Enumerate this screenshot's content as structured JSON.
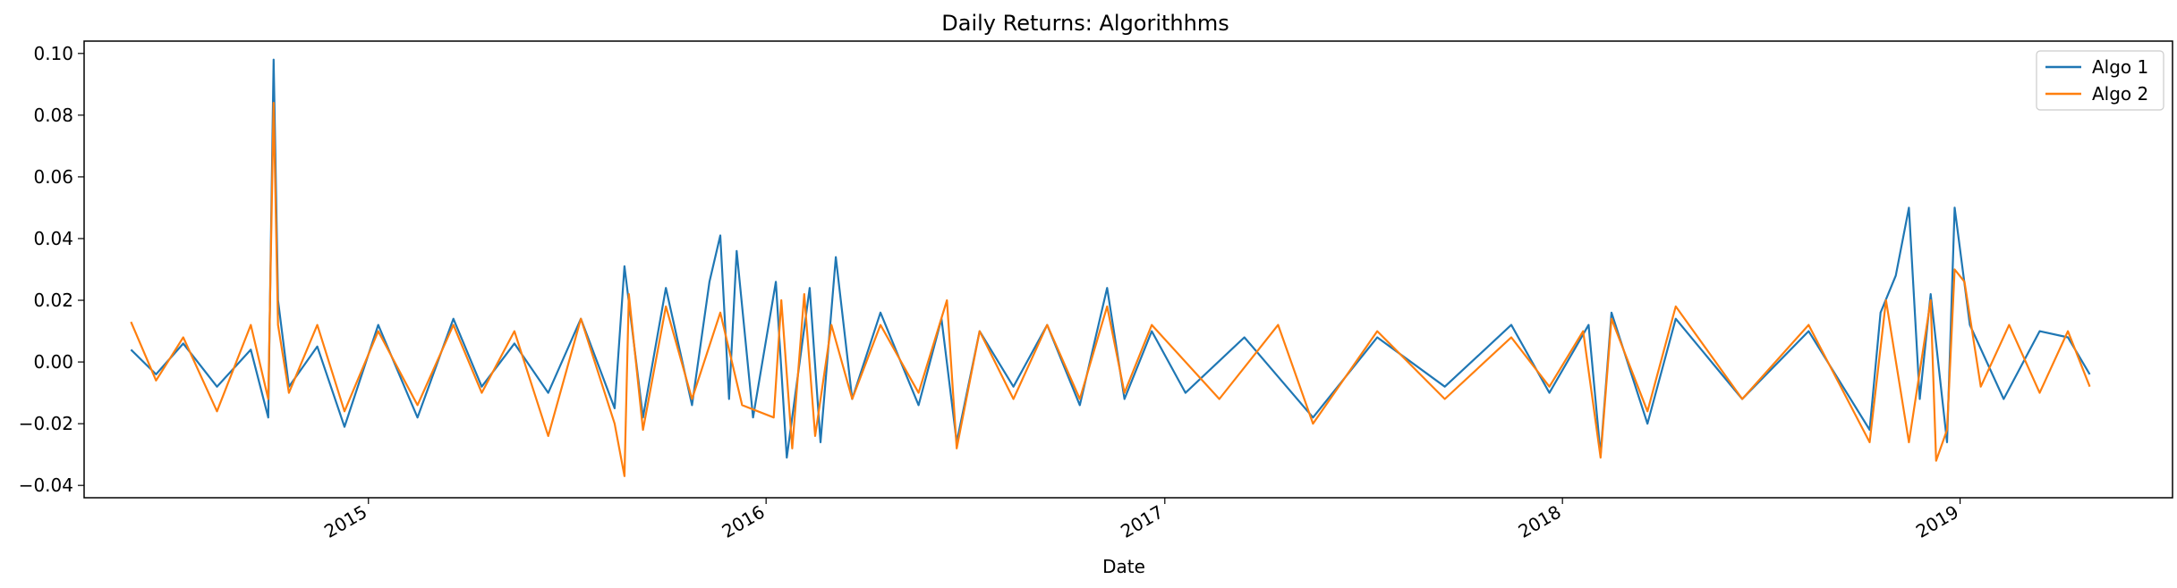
{
  "chart_data": {
    "type": "line",
    "title": "Daily Returns: Algorithhms",
    "xlabel": "Date",
    "ylabel": "",
    "xlim": [
      "2014-04-15",
      "2019-07-15"
    ],
    "ylim": [
      -0.044,
      0.104
    ],
    "y_ticks": [
      -0.04,
      -0.02,
      0.0,
      0.02,
      0.04,
      0.06,
      0.08,
      0.1
    ],
    "y_tick_labels": [
      "−0.04",
      "−0.02",
      "0.00",
      "0.02",
      "0.04",
      "0.06",
      "0.08",
      "0.10"
    ],
    "x_ticks": [
      "2015-01-01",
      "2016-01-01",
      "2017-01-01",
      "2018-01-01",
      "2019-01-01"
    ],
    "x_tick_labels": [
      "2015",
      "2016",
      "2017",
      "2018",
      "2019"
    ],
    "grid": false,
    "legend_position": "top-right",
    "series": [
      {
        "name": "Algo 1",
        "color": "#1f77b4",
        "points": [
          [
            "2014-05-28",
            0.004
          ],
          [
            "2014-06-20",
            -0.004
          ],
          [
            "2014-07-15",
            0.006
          ],
          [
            "2014-08-15",
            -0.008
          ],
          [
            "2014-09-15",
            0.004
          ],
          [
            "2014-10-01",
            -0.018
          ],
          [
            "2014-10-06",
            0.098
          ],
          [
            "2014-10-10",
            0.02
          ],
          [
            "2014-10-20",
            -0.008
          ],
          [
            "2014-11-15",
            0.005
          ],
          [
            "2014-12-10",
            -0.021
          ],
          [
            "2015-01-10",
            0.012
          ],
          [
            "2015-02-15",
            -0.018
          ],
          [
            "2015-03-20",
            0.014
          ],
          [
            "2015-04-15",
            -0.008
          ],
          [
            "2015-05-15",
            0.006
          ],
          [
            "2015-06-15",
            -0.01
          ],
          [
            "2015-07-15",
            0.014
          ],
          [
            "2015-08-15",
            -0.015
          ],
          [
            "2015-08-24",
            0.031
          ],
          [
            "2015-09-10",
            -0.018
          ],
          [
            "2015-10-01",
            0.024
          ],
          [
            "2015-10-25",
            -0.014
          ],
          [
            "2015-11-10",
            0.026
          ],
          [
            "2015-11-20",
            0.041
          ],
          [
            "2015-11-28",
            -0.012
          ],
          [
            "2015-12-05",
            0.036
          ],
          [
            "2015-12-20",
            -0.018
          ],
          [
            "2016-01-10",
            0.026
          ],
          [
            "2016-01-20",
            -0.031
          ],
          [
            "2016-02-10",
            0.024
          ],
          [
            "2016-02-20",
            -0.026
          ],
          [
            "2016-03-05",
            0.034
          ],
          [
            "2016-03-20",
            -0.012
          ],
          [
            "2016-04-15",
            0.016
          ],
          [
            "2016-05-20",
            -0.014
          ],
          [
            "2016-06-10",
            0.014
          ],
          [
            "2016-06-24",
            -0.026
          ],
          [
            "2016-07-15",
            0.01
          ],
          [
            "2016-08-15",
            -0.008
          ],
          [
            "2016-09-15",
            0.012
          ],
          [
            "2016-10-15",
            -0.014
          ],
          [
            "2016-11-09",
            0.024
          ],
          [
            "2016-11-25",
            -0.012
          ],
          [
            "2016-12-20",
            0.01
          ],
          [
            "2017-01-20",
            -0.01
          ],
          [
            "2017-03-15",
            0.008
          ],
          [
            "2017-05-17",
            -0.018
          ],
          [
            "2017-07-15",
            0.008
          ],
          [
            "2017-09-15",
            -0.008
          ],
          [
            "2017-11-15",
            0.012
          ],
          [
            "2017-12-20",
            -0.01
          ],
          [
            "2018-01-25",
            0.012
          ],
          [
            "2018-02-05",
            -0.03
          ],
          [
            "2018-02-15",
            0.016
          ],
          [
            "2018-03-20",
            -0.02
          ],
          [
            "2018-04-15",
            0.014
          ],
          [
            "2018-06-15",
            -0.012
          ],
          [
            "2018-08-15",
            0.01
          ],
          [
            "2018-10-10",
            -0.022
          ],
          [
            "2018-10-20",
            0.016
          ],
          [
            "2018-11-03",
            0.028
          ],
          [
            "2018-11-15",
            0.05
          ],
          [
            "2018-11-25",
            -0.012
          ],
          [
            "2018-12-05",
            0.022
          ],
          [
            "2018-12-20",
            -0.026
          ],
          [
            "2018-12-27",
            0.05
          ],
          [
            "2019-01-10",
            0.012
          ],
          [
            "2019-02-10",
            -0.012
          ],
          [
            "2019-03-15",
            0.01
          ],
          [
            "2019-04-10",
            0.008
          ],
          [
            "2019-04-30",
            -0.004
          ]
        ]
      },
      {
        "name": "Algo 2",
        "color": "#ff7f0e",
        "points": [
          [
            "2014-05-28",
            0.013
          ],
          [
            "2014-06-20",
            -0.006
          ],
          [
            "2014-07-15",
            0.008
          ],
          [
            "2014-08-15",
            -0.016
          ],
          [
            "2014-09-15",
            0.012
          ],
          [
            "2014-10-01",
            -0.012
          ],
          [
            "2014-10-06",
            0.084
          ],
          [
            "2014-10-10",
            0.012
          ],
          [
            "2014-10-20",
            -0.01
          ],
          [
            "2014-11-15",
            0.012
          ],
          [
            "2014-12-10",
            -0.016
          ],
          [
            "2015-01-10",
            0.01
          ],
          [
            "2015-02-15",
            -0.014
          ],
          [
            "2015-03-20",
            0.012
          ],
          [
            "2015-04-15",
            -0.01
          ],
          [
            "2015-05-15",
            0.01
          ],
          [
            "2015-06-15",
            -0.024
          ],
          [
            "2015-07-15",
            0.014
          ],
          [
            "2015-08-15",
            -0.02
          ],
          [
            "2015-08-24",
            -0.037
          ],
          [
            "2015-08-28",
            0.022
          ],
          [
            "2015-09-10",
            -0.022
          ],
          [
            "2015-10-01",
            0.018
          ],
          [
            "2015-10-25",
            -0.012
          ],
          [
            "2015-11-20",
            0.016
          ],
          [
            "2015-12-10",
            -0.014
          ],
          [
            "2016-01-08",
            -0.018
          ],
          [
            "2016-01-15",
            0.02
          ],
          [
            "2016-01-25",
            -0.028
          ],
          [
            "2016-02-05",
            0.022
          ],
          [
            "2016-02-15",
            -0.024
          ],
          [
            "2016-03-01",
            0.012
          ],
          [
            "2016-03-20",
            -0.012
          ],
          [
            "2016-04-15",
            0.012
          ],
          [
            "2016-05-20",
            -0.01
          ],
          [
            "2016-06-15",
            0.02
          ],
          [
            "2016-06-24",
            -0.028
          ],
          [
            "2016-07-15",
            0.01
          ],
          [
            "2016-08-15",
            -0.012
          ],
          [
            "2016-09-15",
            0.012
          ],
          [
            "2016-10-15",
            -0.012
          ],
          [
            "2016-11-09",
            0.018
          ],
          [
            "2016-11-25",
            -0.01
          ],
          [
            "2016-12-20",
            0.012
          ],
          [
            "2017-02-20",
            -0.012
          ],
          [
            "2017-04-15",
            0.012
          ],
          [
            "2017-05-17",
            -0.02
          ],
          [
            "2017-07-15",
            0.01
          ],
          [
            "2017-09-15",
            -0.012
          ],
          [
            "2017-11-15",
            0.008
          ],
          [
            "2017-12-20",
            -0.008
          ],
          [
            "2018-01-20",
            0.01
          ],
          [
            "2018-02-05",
            -0.031
          ],
          [
            "2018-02-15",
            0.014
          ],
          [
            "2018-03-20",
            -0.016
          ],
          [
            "2018-04-15",
            0.018
          ],
          [
            "2018-06-15",
            -0.012
          ],
          [
            "2018-08-15",
            0.012
          ],
          [
            "2018-10-10",
            -0.026
          ],
          [
            "2018-10-25",
            0.02
          ],
          [
            "2018-11-15",
            -0.026
          ],
          [
            "2018-12-05",
            0.02
          ],
          [
            "2018-12-10",
            -0.032
          ],
          [
            "2018-12-20",
            -0.022
          ],
          [
            "2018-12-27",
            0.03
          ],
          [
            "2019-01-05",
            0.026
          ],
          [
            "2019-01-20",
            -0.008
          ],
          [
            "2019-02-15",
            0.012
          ],
          [
            "2019-03-15",
            -0.01
          ],
          [
            "2019-04-10",
            0.01
          ],
          [
            "2019-04-30",
            -0.008
          ]
        ]
      }
    ]
  }
}
